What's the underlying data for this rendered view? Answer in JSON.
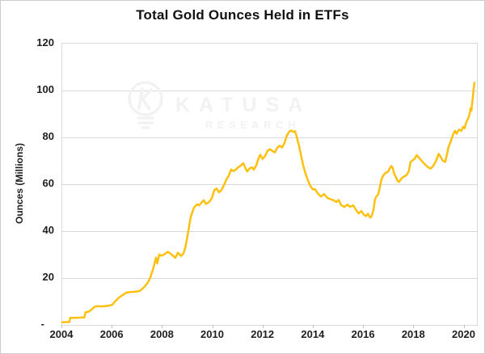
{
  "page": {
    "background": "#ffffff",
    "border_color": "#cccccc"
  },
  "watermark": {
    "brand_top": "KATUSA",
    "brand_bottom": "RESEARCH",
    "icon": "lightbulb-k-icon",
    "color": "#f2f2f2"
  },
  "chart_data": {
    "type": "line",
    "title": "Total Gold Ounces Held in ETFs",
    "xlabel": "",
    "ylabel": "Ounces (Millions)",
    "ylim": [
      0,
      120
    ],
    "xlim": [
      2004,
      2020.5
    ],
    "grid": "horizontal",
    "legend": "none",
    "grid_color": "#d9d9d9",
    "text_color": "#1f1f1f",
    "y_ticks": [
      {
        "value": 0,
        "label": "-"
      },
      {
        "value": 20,
        "label": "20"
      },
      {
        "value": 40,
        "label": "40"
      },
      {
        "value": 60,
        "label": "60"
      },
      {
        "value": 80,
        "label": "80"
      },
      {
        "value": 100,
        "label": "100"
      },
      {
        "value": 120,
        "label": "120"
      }
    ],
    "x_ticks": [
      2004,
      2006,
      2008,
      2010,
      2012,
      2014,
      2016,
      2018,
      2020
    ],
    "series": [
      {
        "name": "Total gold ounces held in ETFs",
        "color": "#FDC00F",
        "points": [
          [
            2004.0,
            1.1
          ],
          [
            2004.15,
            1.2
          ],
          [
            2004.28,
            1.2
          ],
          [
            2004.32,
            3.0
          ],
          [
            2004.5,
            3.0
          ],
          [
            2004.7,
            3.1
          ],
          [
            2004.88,
            3.2
          ],
          [
            2004.93,
            5.4
          ],
          [
            2005.05,
            5.6
          ],
          [
            2005.15,
            6.4
          ],
          [
            2005.28,
            7.7
          ],
          [
            2005.4,
            8.0
          ],
          [
            2005.55,
            7.9
          ],
          [
            2005.7,
            8.0
          ],
          [
            2005.85,
            8.2
          ],
          [
            2005.99,
            8.6
          ],
          [
            2006.1,
            10.0
          ],
          [
            2006.25,
            11.6
          ],
          [
            2006.44,
            13.0
          ],
          [
            2006.55,
            13.8
          ],
          [
            2006.7,
            14.0
          ],
          [
            2006.85,
            14.1
          ],
          [
            2007.0,
            14.3
          ],
          [
            2007.1,
            14.6
          ],
          [
            2007.25,
            16.0
          ],
          [
            2007.4,
            18.0
          ],
          [
            2007.5,
            20.0
          ],
          [
            2007.62,
            24.0
          ],
          [
            2007.73,
            28.7
          ],
          [
            2007.78,
            26.2
          ],
          [
            2007.86,
            30.0
          ],
          [
            2007.95,
            29.5
          ],
          [
            2008.05,
            30.0
          ],
          [
            2008.2,
            31.2
          ],
          [
            2008.32,
            30.3
          ],
          [
            2008.5,
            28.6
          ],
          [
            2008.6,
            30.8
          ],
          [
            2008.73,
            29.4
          ],
          [
            2008.82,
            30.5
          ],
          [
            2008.9,
            33.0
          ],
          [
            2009.0,
            39.0
          ],
          [
            2009.11,
            46.0
          ],
          [
            2009.24,
            50.0
          ],
          [
            2009.37,
            51.5
          ],
          [
            2009.45,
            51.0
          ],
          [
            2009.55,
            52.3
          ],
          [
            2009.63,
            53.2
          ],
          [
            2009.72,
            51.6
          ],
          [
            2009.85,
            52.5
          ],
          [
            2009.95,
            54.0
          ],
          [
            2010.05,
            57.5
          ],
          [
            2010.14,
            58.2
          ],
          [
            2010.24,
            56.6
          ],
          [
            2010.33,
            57.5
          ],
          [
            2010.43,
            59.5
          ],
          [
            2010.53,
            62.0
          ],
          [
            2010.62,
            63.5
          ],
          [
            2010.72,
            66.3
          ],
          [
            2010.82,
            65.6
          ],
          [
            2010.91,
            66.3
          ],
          [
            2011.01,
            67.3
          ],
          [
            2011.11,
            68.0
          ],
          [
            2011.2,
            69.0
          ],
          [
            2011.3,
            66.6
          ],
          [
            2011.36,
            65.5
          ],
          [
            2011.46,
            66.8
          ],
          [
            2011.56,
            67.2
          ],
          [
            2011.62,
            66.2
          ],
          [
            2011.72,
            68.0
          ],
          [
            2011.81,
            71.0
          ],
          [
            2011.88,
            72.6
          ],
          [
            2011.97,
            70.8
          ],
          [
            2012.07,
            72.0
          ],
          [
            2012.17,
            74.3
          ],
          [
            2012.26,
            75.0
          ],
          [
            2012.36,
            74.2
          ],
          [
            2012.46,
            73.6
          ],
          [
            2012.55,
            75.5
          ],
          [
            2012.65,
            76.5
          ],
          [
            2012.75,
            75.7
          ],
          [
            2012.84,
            77.5
          ],
          [
            2012.94,
            80.9
          ],
          [
            2013.03,
            82.4
          ],
          [
            2013.1,
            83.0
          ],
          [
            2013.2,
            82.3
          ],
          [
            2013.26,
            82.7
          ],
          [
            2013.32,
            80.6
          ],
          [
            2013.42,
            76.5
          ],
          [
            2013.52,
            71.5
          ],
          [
            2013.58,
            68.3
          ],
          [
            2013.68,
            64.5
          ],
          [
            2013.78,
            61.5
          ],
          [
            2013.87,
            59.3
          ],
          [
            2013.97,
            57.8
          ],
          [
            2014.06,
            57.9
          ],
          [
            2014.16,
            56.2
          ],
          [
            2014.29,
            54.8
          ],
          [
            2014.42,
            55.8
          ],
          [
            2014.55,
            54.2
          ],
          [
            2014.68,
            53.6
          ],
          [
            2014.8,
            53.2
          ],
          [
            2014.9,
            52.4
          ],
          [
            2015.0,
            53.3
          ],
          [
            2015.09,
            51.2
          ],
          [
            2015.22,
            50.3
          ],
          [
            2015.35,
            51.3
          ],
          [
            2015.45,
            50.4
          ],
          [
            2015.58,
            51.0
          ],
          [
            2015.7,
            48.8
          ],
          [
            2015.8,
            47.6
          ],
          [
            2015.9,
            48.6
          ],
          [
            2016.0,
            47.0
          ],
          [
            2016.09,
            46.4
          ],
          [
            2016.16,
            47.4
          ],
          [
            2016.25,
            45.8
          ],
          [
            2016.31,
            46.3
          ],
          [
            2016.38,
            48.9
          ],
          [
            2016.44,
            53.4
          ],
          [
            2016.51,
            55.0
          ],
          [
            2016.57,
            55.6
          ],
          [
            2016.63,
            58.5
          ],
          [
            2016.7,
            62.0
          ],
          [
            2016.76,
            63.5
          ],
          [
            2016.86,
            64.8
          ],
          [
            2016.96,
            65.3
          ],
          [
            2017.02,
            66.5
          ],
          [
            2017.09,
            67.8
          ],
          [
            2017.15,
            67.0
          ],
          [
            2017.21,
            64.5
          ],
          [
            2017.28,
            63.0
          ],
          [
            2017.34,
            61.5
          ],
          [
            2017.4,
            61.0
          ],
          [
            2017.5,
            62.5
          ],
          [
            2017.6,
            63.3
          ],
          [
            2017.69,
            63.8
          ],
          [
            2017.79,
            65.5
          ],
          [
            2017.86,
            69.5
          ],
          [
            2017.95,
            70.3
          ],
          [
            2018.02,
            70.8
          ],
          [
            2018.1,
            72.4
          ],
          [
            2018.25,
            70.7
          ],
          [
            2018.34,
            69.5
          ],
          [
            2018.44,
            68.4
          ],
          [
            2018.56,
            67.2
          ],
          [
            2018.66,
            66.7
          ],
          [
            2018.76,
            67.8
          ],
          [
            2018.88,
            70.1
          ],
          [
            2018.98,
            73.0
          ],
          [
            2019.05,
            71.8
          ],
          [
            2019.14,
            70.1
          ],
          [
            2019.24,
            69.5
          ],
          [
            2019.3,
            72.4
          ],
          [
            2019.37,
            75.9
          ],
          [
            2019.47,
            78.7
          ],
          [
            2019.56,
            81.6
          ],
          [
            2019.63,
            82.8
          ],
          [
            2019.69,
            81.6
          ],
          [
            2019.79,
            83.3
          ],
          [
            2019.88,
            82.8
          ],
          [
            2019.95,
            84.5
          ],
          [
            2020.01,
            83.9
          ],
          [
            2020.05,
            85.6
          ],
          [
            2020.11,
            87.3
          ],
          [
            2020.17,
            88.5
          ],
          [
            2020.21,
            90.0
          ],
          [
            2020.25,
            92.5
          ],
          [
            2020.28,
            91.5
          ],
          [
            2020.32,
            95.5
          ],
          [
            2020.36,
            99.5
          ],
          [
            2020.4,
            103.3
          ]
        ]
      }
    ]
  }
}
